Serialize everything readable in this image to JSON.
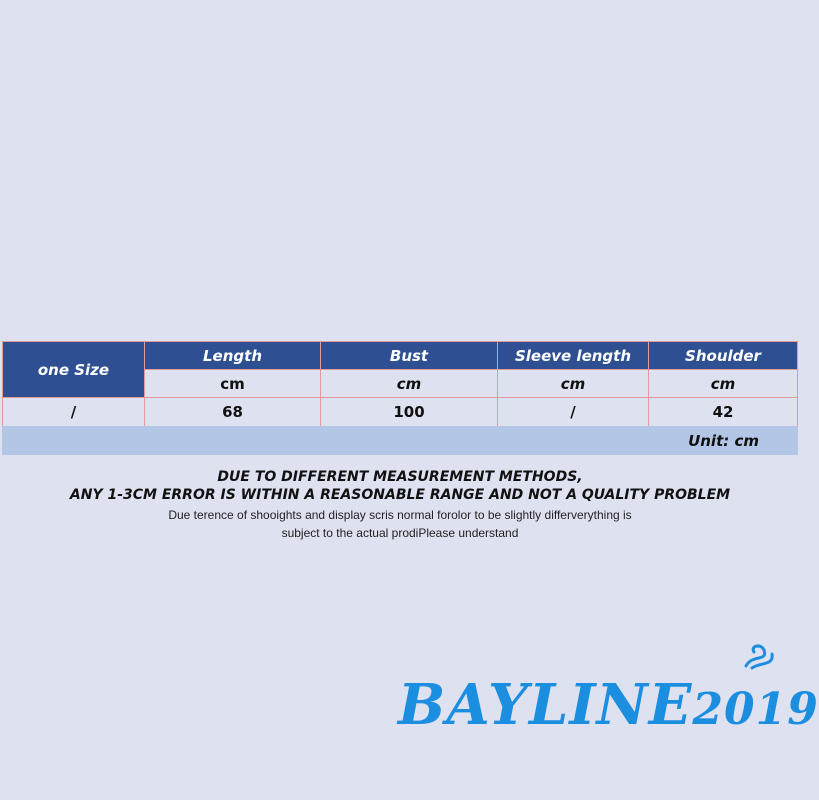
{
  "table": {
    "corner": "one Size",
    "headers": [
      "Length",
      "Bust",
      "Sleeve length",
      "Shoulder"
    ],
    "units": [
      "cm",
      "cm",
      "cm",
      "cm"
    ],
    "row_label": "/",
    "values": [
      "68",
      "100",
      "/",
      "42"
    ],
    "unit_note": "Unit: cm"
  },
  "notice": {
    "line1": "DUE TO DIFFERENT MEASUREMENT METHODS,",
    "line2": "ANY 1-3CM ERROR IS WITHIN A REASONABLE RANGE AND NOT A QUALITY PROBLEM",
    "line3": "Due terence of shooights and display scris normal forolor to be slightly differverything is",
    "line4": "subject to the actual prodiPlease understand"
  },
  "logo": {
    "name": "BAYLINE",
    "year": "2019",
    "color": "#1c8ee0"
  },
  "colors": {
    "header": "#2e5093",
    "background": "#dde1f0",
    "unit_row": "#b4c6e6",
    "border": "#e59a9a"
  }
}
